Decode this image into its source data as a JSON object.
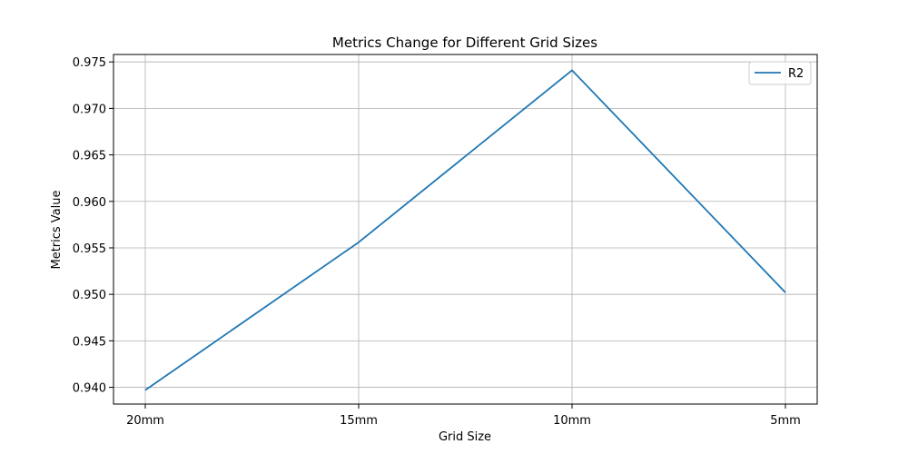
{
  "chart_data": {
    "type": "line",
    "title": "Metrics Change for Different Grid Sizes",
    "xlabel": "Grid Size",
    "ylabel": "Metrics Value",
    "categories": [
      "20mm",
      "15mm",
      "10mm",
      "5mm"
    ],
    "series": [
      {
        "name": "R2",
        "values": [
          0.9397,
          0.9556,
          0.9741,
          0.9502
        ],
        "color": "#1f77b4"
      }
    ],
    "ylim": [
      0.9382,
      0.9758
    ],
    "yticks": [
      0.94,
      0.945,
      0.95,
      0.955,
      0.96,
      0.965,
      0.97,
      0.975
    ],
    "ytick_labels": [
      "0.940",
      "0.945",
      "0.950",
      "0.955",
      "0.960",
      "0.965",
      "0.970",
      "0.975"
    ],
    "grid": true,
    "legend_position": "upper right"
  }
}
